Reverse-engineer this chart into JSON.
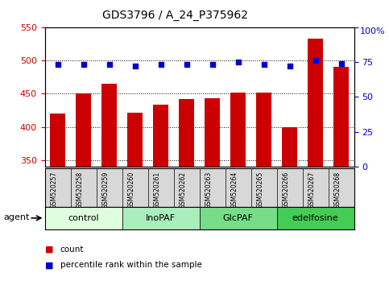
{
  "title": "GDS3796 / A_24_P375962",
  "samples": [
    "GSM520257",
    "GSM520258",
    "GSM520259",
    "GSM520260",
    "GSM520261",
    "GSM520262",
    "GSM520263",
    "GSM520264",
    "GSM520265",
    "GSM520266",
    "GSM520267",
    "GSM520268"
  ],
  "bar_values": [
    420,
    450,
    465,
    421,
    433,
    442,
    443,
    452,
    452,
    399,
    533,
    490
  ],
  "percentile_values": [
    73,
    73,
    73,
    72,
    73,
    73,
    73,
    75,
    73,
    72,
    76,
    74
  ],
  "bar_color": "#cc0000",
  "dot_color": "#0000cc",
  "ylim_left": [
    340,
    550
  ],
  "ylim_right": [
    0,
    100
  ],
  "yticks_left": [
    350,
    400,
    450,
    500,
    550
  ],
  "yticks_right": [
    0,
    25,
    50,
    75,
    100
  ],
  "groups": [
    {
      "label": "control",
      "start": 0,
      "end": 3,
      "color": "#ddffdd"
    },
    {
      "label": "InoPAF",
      "start": 3,
      "end": 6,
      "color": "#aaeebb"
    },
    {
      "label": "GlcPAF",
      "start": 6,
      "end": 9,
      "color": "#77dd88"
    },
    {
      "label": "edelfosine",
      "start": 9,
      "end": 12,
      "color": "#44cc55"
    }
  ],
  "sample_bg_color": "#d8d8d8",
  "agent_label": "agent",
  "legend_count_label": "count",
  "legend_pct_label": "percentile rank within the sample",
  "title_fontsize": 10,
  "tick_fontsize": 8,
  "sample_fontsize": 5.5,
  "group_fontsize": 8,
  "legend_fontsize": 7.5
}
